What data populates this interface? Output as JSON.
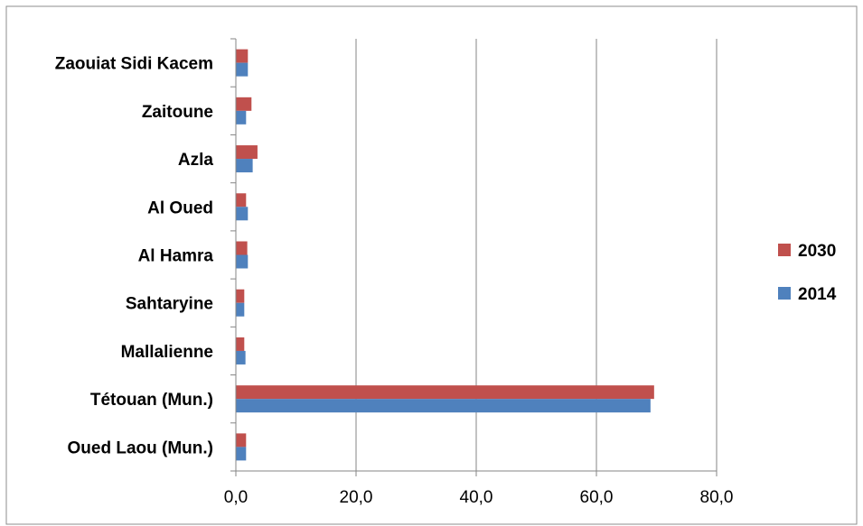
{
  "chart_data": {
    "type": "bar",
    "orientation": "horizontal",
    "categories": [
      "Zaouiat Sidi Kacem",
      "Zaitoune",
      "Azla",
      "Al Oued",
      "Al Hamra",
      "Sahtaryine",
      "Mallalienne",
      "Tétouan (Mun.)",
      "Oued Laou (Mun.)"
    ],
    "series": [
      {
        "name": "2030",
        "color": "#C0504D",
        "values": [
          2.0,
          2.6,
          3.6,
          1.7,
          1.9,
          1.4,
          1.4,
          69.6,
          1.7
        ]
      },
      {
        "name": "2014",
        "color": "#4F81BD",
        "values": [
          2.0,
          1.7,
          2.8,
          2.0,
          2.0,
          1.4,
          1.6,
          69.0,
          1.7
        ]
      }
    ],
    "xlim": [
      0,
      80
    ],
    "xticks": [
      0,
      20,
      40,
      60,
      80
    ],
    "xtick_labels": [
      "0,0",
      "20,0",
      "40,0",
      "60,0",
      "80,0"
    ],
    "grid": "vertical",
    "legend_position": "right",
    "title": "",
    "xlabel": "",
    "ylabel": ""
  }
}
